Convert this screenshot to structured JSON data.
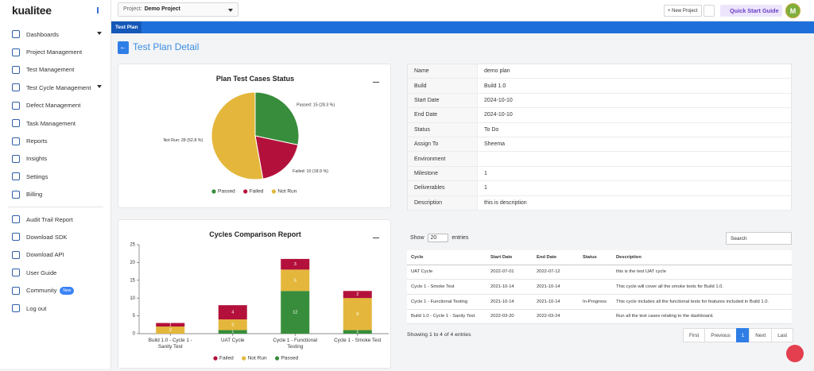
{
  "sidebar": {
    "logo": "kualitee",
    "items": [
      "Dashboards",
      "Project Management",
      "Test Management",
      "Test Cycle Management",
      "Defect Management",
      "Task Management",
      "Reports",
      "Insights",
      "Settings",
      "Billing",
      "Audit Trail Report",
      "Download SDK",
      "Download API",
      "User Guide",
      "Community",
      "Log out"
    ],
    "community_badge": "New"
  },
  "topbar": {
    "project_label": "Project:",
    "project": "Demo Project",
    "new_project": "New Project",
    "quick_start": "Quick Start Guide",
    "avatar": "M"
  },
  "tab": "Test Plan",
  "page_title": "Test Plan Detail",
  "chart_data": [
    {
      "type": "pie",
      "title": "Plan Test Cases Status",
      "categories": [
        "Passed",
        "Failed",
        "Not Run"
      ],
      "values": [
        15,
        10,
        28
      ],
      "value_labels": [
        "Passed: 15 (28.3 %)",
        "Failed: 10 (18.9 %)",
        "Not Run: 28 (52.8 %)"
      ],
      "colors": [
        "#378d3b",
        "#b3113b",
        "#e4b73c"
      ]
    },
    {
      "type": "bar",
      "stacked": true,
      "title": "Cycles Comparison Report",
      "categories": [
        "Build 1.0 - Cycle 1 - Sanity Test",
        "UAT Cycle",
        "Cycle 1 - Functional Testing",
        "Cycle 1 - Smoke Test"
      ],
      "series": [
        {
          "name": "Passed",
          "color": "#378d3b",
          "values": [
            0,
            1,
            12,
            1
          ]
        },
        {
          "name": "Not Run",
          "color": "#e4b73c",
          "values": [
            2,
            3,
            6,
            9
          ]
        },
        {
          "name": "Failed",
          "color": "#b3113b",
          "values": [
            1,
            4,
            3,
            2
          ]
        }
      ],
      "ylim": [
        0,
        25
      ],
      "yticks": [
        0,
        5,
        10,
        15,
        20,
        25
      ],
      "grid": false
    }
  ],
  "details": [
    [
      "Name",
      "demo plan"
    ],
    [
      "Build",
      "Build 1.0"
    ],
    [
      "Start Date",
      "2024-10-10"
    ],
    [
      "End Date",
      "2024-10-10"
    ],
    [
      "Status",
      "To Do"
    ],
    [
      "Assign To",
      "Sheema"
    ],
    [
      "Environment",
      null
    ],
    [
      "Milestone",
      "1"
    ],
    [
      "Deliverables",
      "1"
    ],
    [
      "Description",
      "this is description"
    ]
  ],
  "cycles_table": {
    "show": "Show",
    "page_length": "20",
    "entries": "entries",
    "search": "Search",
    "columns": [
      "Cycle",
      "Start Date",
      "End Date",
      "Status",
      "Description"
    ],
    "rows": [
      [
        "UAT Cycle",
        "2022-07-01",
        "2022-07-12",
        null,
        "this is the test UAT cycle"
      ],
      [
        "Cycle 1 - Smoke Test",
        "2021-10-14",
        "2021-10-14",
        null,
        "This cycle will cover all the smoke tests for Build 1.0."
      ],
      [
        "Cycle 1 - Functional Testing",
        "2021-10-14",
        "2021-10-14",
        "In-Progress",
        "This cycle includes all the functional tests for features included in Build 1.0."
      ],
      [
        "Build 1.0 - Cycle 1 - Sanity Test",
        "2022-03-20",
        "2022-03-24",
        null,
        "Run all the test cases relating to the dashboard."
      ]
    ],
    "info": "Showing 1 to 4 of 4 entries",
    "pagination": [
      "First",
      "Previous",
      "1",
      "Next",
      "Last"
    ]
  }
}
